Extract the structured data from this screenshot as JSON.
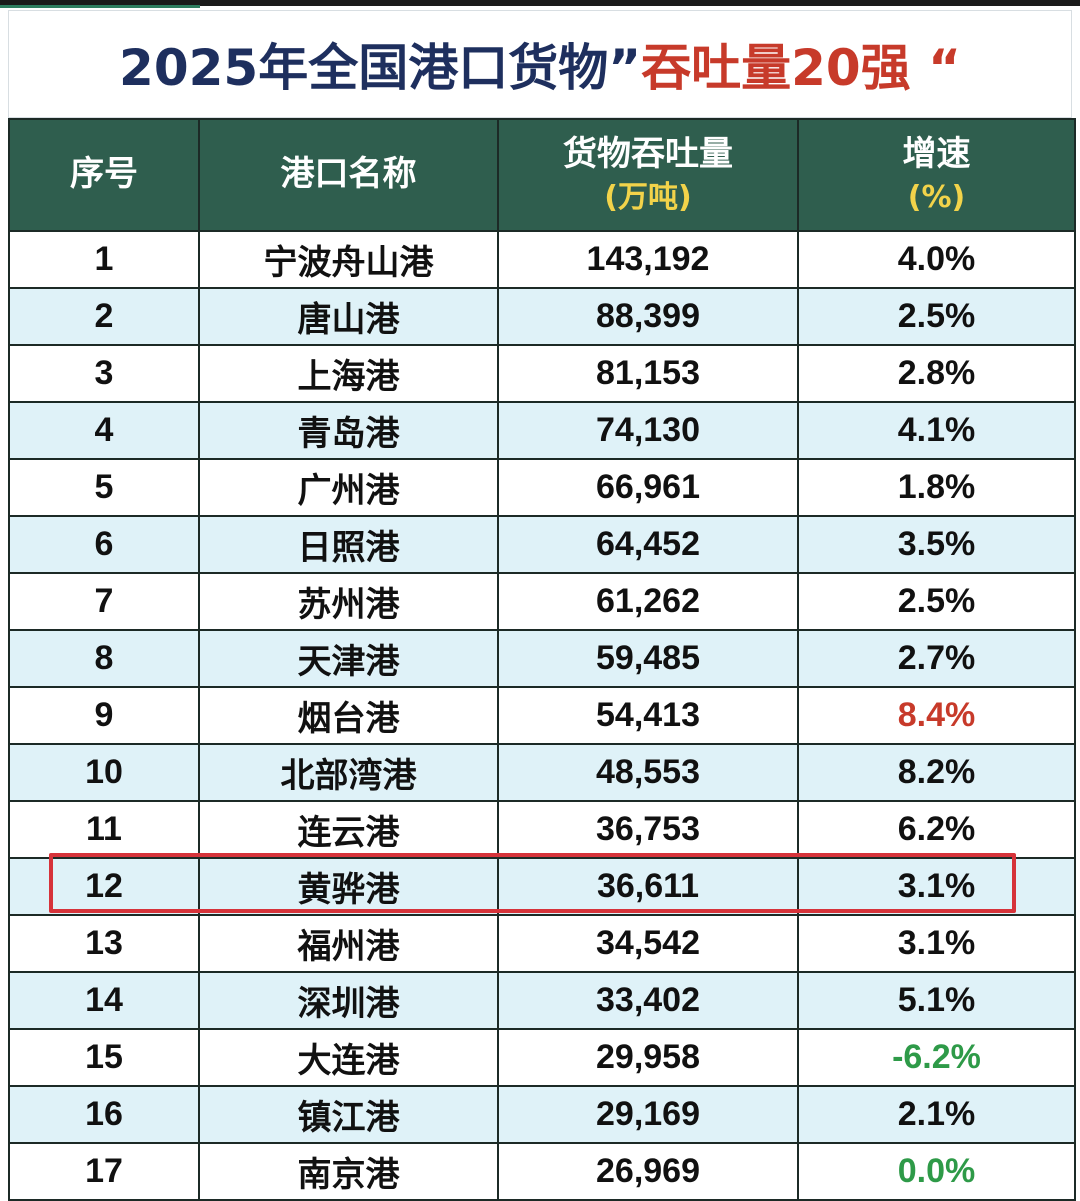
{
  "chart_data": {
    "type": "table",
    "title_part1": "2025年全国港口货物”",
    "title_part2": "吞吐量20强 “",
    "headers": {
      "rank": "序号",
      "port": "港口名称",
      "throughput": "货物吞吐量",
      "throughput_unit": "(万吨)",
      "growth": "增速",
      "growth_unit": "(%)"
    },
    "rows": [
      {
        "rank": "1",
        "port": "宁波舟山港",
        "throughput": "143,192",
        "growth": "4.0%",
        "style": "normal"
      },
      {
        "rank": "2",
        "port": "唐山港",
        "throughput": "88,399",
        "growth": "2.5%",
        "style": "normal"
      },
      {
        "rank": "3",
        "port": "上海港",
        "throughput": "81,153",
        "growth": "2.8%",
        "style": "normal"
      },
      {
        "rank": "4",
        "port": "青岛港",
        "throughput": "74,130",
        "growth": "4.1%",
        "style": "normal"
      },
      {
        "rank": "5",
        "port": "广州港",
        "throughput": "66,961",
        "growth": "1.8%",
        "style": "normal"
      },
      {
        "rank": "6",
        "port": "日照港",
        "throughput": "64,452",
        "growth": "3.5%",
        "style": "normal"
      },
      {
        "rank": "7",
        "port": "苏州港",
        "throughput": "61,262",
        "growth": "2.5%",
        "style": "normal"
      },
      {
        "rank": "8",
        "port": "天津港",
        "throughput": "59,485",
        "growth": "2.7%",
        "style": "normal"
      },
      {
        "rank": "9",
        "port": "烟台港",
        "throughput": "54,413",
        "growth": "8.4%",
        "style": "hi"
      },
      {
        "rank": "10",
        "port": "北部湾港",
        "throughput": "48,553",
        "growth": "8.2%",
        "style": "normal"
      },
      {
        "rank": "11",
        "port": "连云港",
        "throughput": "36,753",
        "growth": "6.2%",
        "style": "normal"
      },
      {
        "rank": "12",
        "port": "黄骅港",
        "throughput": "36,611",
        "growth": "3.1%",
        "style": "normal"
      },
      {
        "rank": "13",
        "port": "福州港",
        "throughput": "34,542",
        "growth": "3.1%",
        "style": "normal"
      },
      {
        "rank": "14",
        "port": "深圳港",
        "throughput": "33,402",
        "growth": "5.1%",
        "style": "normal"
      },
      {
        "rank": "15",
        "port": "大连港",
        "throughput": "29,958",
        "growth": "-6.2%",
        "style": "neg"
      },
      {
        "rank": "16",
        "port": "镇江港",
        "throughput": "29,169",
        "growth": "2.1%",
        "style": "normal"
      },
      {
        "rank": "17",
        "port": "南京港",
        "throughput": "26,969",
        "growth": "0.0%",
        "style": "zero"
      }
    ],
    "highlighted_rank": "12",
    "colors": {
      "header_bg": "#2f5e4e",
      "header_unit": "#f2d34a",
      "title_dark": "#1e2f5e",
      "title_red": "#c73a2a",
      "stripe": "#dff2f8",
      "highlight_border": "#d6333a",
      "negative": "#2e9a48"
    }
  }
}
